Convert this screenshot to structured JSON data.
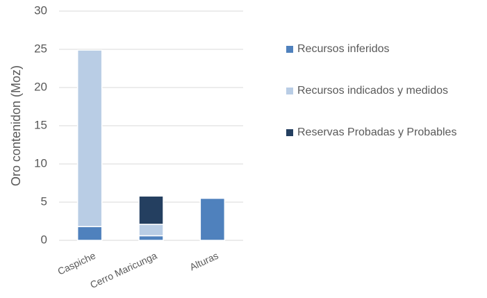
{
  "chart_data": {
    "type": "stacked_bar",
    "y_label": "Oro contenidon (Moz)",
    "categories": [
      "Caspiche",
      "Cerro Maricunga",
      "Alturas"
    ],
    "series": [
      {
        "name": "Recursos inferidos",
        "color": "#4f81bd",
        "values": [
          1.8,
          0.6,
          5.5
        ]
      },
      {
        "name": "Recursos indicados y medidos",
        "color": "#b9cde5",
        "values": [
          23.1,
          1.5,
          0
        ]
      },
      {
        "name": "Reservas Probadas y Probables",
        "color": "#243f60",
        "values": [
          0,
          3.7,
          0
        ]
      }
    ],
    "ylim": [
      0,
      30
    ],
    "yticks": [
      0,
      5,
      10,
      15,
      20,
      25,
      30
    ],
    "grid": true,
    "legend": "right"
  }
}
